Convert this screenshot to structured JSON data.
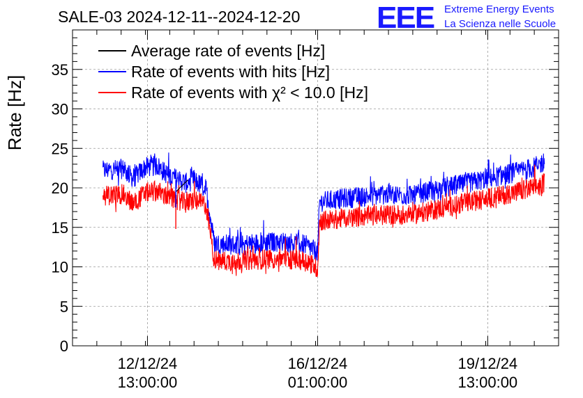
{
  "chart_data": {
    "type": "line",
    "title": "SALE-03 2024-12-11--2024-12-20",
    "ylabel": "Rate [Hz]",
    "xlabel": "",
    "ylim": [
      0,
      40
    ],
    "y_ticks": [
      0,
      5,
      10,
      15,
      20,
      25,
      30,
      35
    ],
    "x_range": [
      "2024-12-11 00:00:00",
      "2024-12-21 00:00:00"
    ],
    "x_ticks": [
      {
        "date": "2024-12-12 13:00:00",
        "line1": "12/12/24",
        "line2": "13:00:00"
      },
      {
        "date": "2024-12-16 01:00:00",
        "line1": "16/12/24",
        "line2": "01:00:00"
      },
      {
        "date": "2024-12-19 13:00:00",
        "line1": "19/12/24",
        "line2": "13:00:00"
      }
    ],
    "grid": true,
    "legend_position": "top-left",
    "legend": [
      {
        "text": "Average rate of events [Hz]",
        "color": "#000000"
      },
      {
        "text": "Rate of events with hits [Hz]",
        "color": "#0000ff"
      },
      {
        "text": "Rate of events with χ² < 10.0 [Hz]",
        "color": "#ff0000"
      }
    ],
    "series": [
      {
        "key": "hits",
        "color": "#0000ff",
        "points": [
          [
            "2024-12-11 15:00",
            22.2
          ],
          [
            "2024-12-12 01:00",
            22.4
          ],
          [
            "2024-12-12 06:00",
            21.2
          ],
          [
            "2024-12-12 12:00",
            22.6
          ],
          [
            "2024-12-12 18:00",
            22.8
          ],
          [
            "2024-12-12 23:00",
            21.6
          ],
          [
            "2024-12-13 05:00",
            21.0
          ],
          [
            "2024-12-13 08:00",
            20.6
          ],
          [
            "2024-12-13 12:00",
            21.0
          ],
          [
            "2024-12-13 18:00",
            19.8
          ],
          [
            "2024-12-13 22:00",
            13.0
          ],
          [
            "2024-12-14 06:00",
            12.8
          ],
          [
            "2024-12-14 18:00",
            13.0
          ],
          [
            "2024-12-15 06:00",
            13.2
          ],
          [
            "2024-12-15 18:00",
            12.9
          ],
          [
            "2024-12-15 22:00",
            12.3
          ],
          [
            "2024-12-16 00:00",
            12.0
          ],
          [
            "2024-12-16 01:00",
            11.8
          ],
          [
            "2024-12-16 02:00",
            18.2
          ],
          [
            "2024-12-16 12:00",
            18.6
          ],
          [
            "2024-12-17 00:00",
            18.9
          ],
          [
            "2024-12-17 12:00",
            19.2
          ],
          [
            "2024-12-18 00:00",
            19.0
          ],
          [
            "2024-12-18 12:00",
            19.8
          ],
          [
            "2024-12-19 00:00",
            20.4
          ],
          [
            "2024-12-19 12:00",
            21.1
          ],
          [
            "2024-12-20 00:00",
            21.8
          ],
          [
            "2024-12-20 12:00",
            22.6
          ],
          [
            "2024-12-20 17:00",
            23.3
          ]
        ]
      },
      {
        "key": "chi2",
        "color": "#ff0000",
        "points": [
          [
            "2024-12-11 15:00",
            19.0
          ],
          [
            "2024-12-12 01:00",
            19.2
          ],
          [
            "2024-12-12 06:00",
            18.0
          ],
          [
            "2024-12-12 12:00",
            19.4
          ],
          [
            "2024-12-12 18:00",
            19.6
          ],
          [
            "2024-12-12 23:00",
            18.8
          ],
          [
            "2024-12-13 05:00",
            18.4
          ],
          [
            "2024-12-13 08:00",
            18.0
          ],
          [
            "2024-12-13 12:00",
            18.5
          ],
          [
            "2024-12-13 18:00",
            17.8
          ],
          [
            "2024-12-13 22:00",
            10.8
          ],
          [
            "2024-12-14 06:00",
            10.7
          ],
          [
            "2024-12-14 18:00",
            10.9
          ],
          [
            "2024-12-15 06:00",
            11.1
          ],
          [
            "2024-12-15 18:00",
            10.8
          ],
          [
            "2024-12-15 22:00",
            10.4
          ],
          [
            "2024-12-16 00:00",
            10.0
          ],
          [
            "2024-12-16 01:00",
            9.8
          ],
          [
            "2024-12-16 02:00",
            15.8
          ],
          [
            "2024-12-16 12:00",
            16.1
          ],
          [
            "2024-12-17 00:00",
            16.4
          ],
          [
            "2024-12-17 12:00",
            16.6
          ],
          [
            "2024-12-18 00:00",
            16.6
          ],
          [
            "2024-12-18 12:00",
            17.3
          ],
          [
            "2024-12-19 00:00",
            18.0
          ],
          [
            "2024-12-19 12:00",
            18.6
          ],
          [
            "2024-12-20 00:00",
            19.3
          ],
          [
            "2024-12-20 12:00",
            20.0
          ],
          [
            "2024-12-20 17:00",
            20.6
          ]
        ]
      },
      {
        "key": "avg",
        "color": "#000000",
        "points": [
          [
            "2024-12-13 03:00",
            19.5
          ],
          [
            "2024-12-13 09:00",
            21.0
          ]
        ]
      }
    ],
    "annotation_dips": [
      {
        "date": "2024-12-13 03:00",
        "series": "chi2",
        "value": 14.8
      },
      {
        "date": "2024-12-13 03:00",
        "series": "hits",
        "value": 17.5
      }
    ]
  },
  "logo": {
    "mark": "EEE",
    "line1": "Extreme Energy Events",
    "line2": "La Scienza nelle Scuole"
  }
}
